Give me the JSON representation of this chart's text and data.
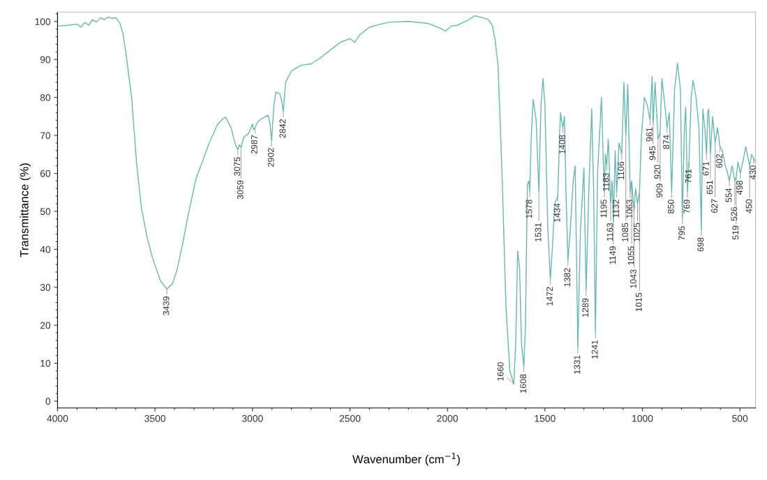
{
  "chart_data": {
    "type": "line",
    "xlabel": "Wavenumber (cm$^{−1}$)",
    "ylabel": "Transmittance (%)",
    "xlim": [
      4000,
      420
    ],
    "ylim": [
      -1.8,
      102.5
    ],
    "xticks": [
      4000,
      3500,
      3000,
      2500,
      2000,
      1500,
      1000,
      500
    ],
    "yticks": [
      0,
      10,
      20,
      30,
      40,
      50,
      60,
      70,
      80,
      90,
      100
    ],
    "grid": false,
    "marker": "none",
    "line_style": "solid",
    "series": [
      {
        "color": "#66b8b0",
        "x": [
          4000,
          3950,
          3900,
          3880,
          3860,
          3840,
          3820,
          3800,
          3780,
          3760,
          3740,
          3720,
          3700,
          3680,
          3665,
          3650,
          3640,
          3620,
          3595,
          3570,
          3540,
          3514,
          3472,
          3439,
          3410,
          3387,
          3360,
          3331,
          3290,
          3250,
          3222,
          3180,
          3150,
          3137,
          3110,
          3090,
          3075,
          3068,
          3059,
          3045,
          3020,
          3000,
          2995,
          2987,
          2975,
          2950,
          2920,
          2910,
          2902,
          2890,
          2880,
          2860,
          2850,
          2842,
          2830,
          2800,
          2750,
          2700,
          2650,
          2600,
          2550,
          2500,
          2475,
          2450,
          2400,
          2350,
          2300,
          2200,
          2100,
          2050,
          2010,
          1980,
          1950,
          1900,
          1860,
          1820,
          1790,
          1770,
          1755,
          1740,
          1720,
          1700,
          1680,
          1660,
          1650,
          1640,
          1630,
          1620,
          1608,
          1600,
          1590,
          1582,
          1578,
          1570,
          1560,
          1545,
          1531,
          1520,
          1510,
          1500,
          1485,
          1472,
          1460,
          1450,
          1434,
          1425,
          1420,
          1415,
          1408,
          1400,
          1392,
          1382,
          1370,
          1355,
          1345,
          1331,
          1318,
          1300,
          1289,
          1275,
          1260,
          1250,
          1241,
          1230,
          1210,
          1200,
          1195,
          1190,
          1183,
          1175,
          1163,
          1155,
          1149,
          1140,
          1132,
          1120,
          1106,
          1095,
          1085,
          1075,
          1063,
          1055,
          1043,
          1035,
          1025,
          1015,
          1005,
          990,
          975,
          961,
          950,
          945,
          935,
          920,
          909,
          900,
          885,
          874,
          862,
          850,
          835,
          820,
          805,
          795,
          785,
          778,
          769,
          761,
          750,
          740,
          725,
          710,
          698,
          690,
          680,
          671,
          665,
          660,
          651,
          640,
          627,
          615,
          602,
          590,
          575,
          565,
          554,
          540,
          526,
          519,
          510,
          498,
          485,
          470,
          450,
          440,
          430,
          420
        ],
        "values": [
          98.8,
          99,
          99.3,
          98.5,
          99.8,
          99,
          100.5,
          99.8,
          101,
          100.5,
          101.2,
          100.8,
          101,
          99.5,
          97,
          92,
          88,
          80,
          63,
          51,
          43,
          38,
          31.7,
          29.5,
          31,
          34.6,
          41,
          48.7,
          58.6,
          64,
          68,
          72.8,
          74.5,
          74.8,
          72,
          68,
          66.2,
          67.5,
          66.8,
          69.5,
          70.5,
          73,
          71.5,
          72,
          73.5,
          74.5,
          75.3,
          73,
          68.6,
          78,
          81.4,
          81,
          79,
          76.2,
          84,
          87,
          88.5,
          88.8,
          90.5,
          92.5,
          94.5,
          95.5,
          94.5,
          96.5,
          98.5,
          99.2,
          99.8,
          100,
          99.5,
          98.5,
          97.5,
          98.8,
          99,
          100.2,
          101.5,
          101,
          100.5,
          99,
          95,
          88,
          60,
          25,
          8,
          4.5,
          15,
          39.5,
          35,
          15,
          9,
          20,
          57,
          58,
          55,
          70,
          79.5,
          74,
          55,
          78,
          85,
          78,
          45,
          32,
          42,
          52,
          54,
          70,
          76,
          74,
          72,
          75,
          55,
          37,
          45,
          58,
          62,
          14,
          45,
          61.5,
          29,
          55,
          77,
          55,
          18,
          60,
          80,
          62,
          55,
          65,
          62,
          69,
          52,
          58,
          47,
          66,
          55,
          68,
          65,
          84,
          70,
          83.5,
          55,
          58,
          50,
          56,
          52,
          55,
          70,
          80,
          78,
          74,
          85.5,
          73,
          84,
          69,
          71,
          85,
          78,
          72,
          76,
          55,
          82,
          89,
          82,
          48,
          72,
          77.5,
          55,
          63,
          80,
          84.5,
          80,
          72,
          45,
          77,
          72,
          65,
          76,
          77,
          65,
          75,
          68,
          72,
          67,
          66,
          62,
          60.5,
          58,
          62,
          58,
          59,
          63,
          60,
          63,
          67,
          62,
          65,
          64,
          63
        ]
      }
    ],
    "annotations": [
      {
        "text": "3439",
        "x": 3439,
        "y": 29.5
      },
      {
        "text": "3075",
        "x": 3075,
        "y": 66.2
      },
      {
        "text": "3059",
        "x": 3059,
        "y": 66.8
      },
      {
        "text": "2987",
        "x": 2987,
        "y": 72
      },
      {
        "text": "2902",
        "x": 2902,
        "y": 68.6
      },
      {
        "text": "2842",
        "x": 2842,
        "y": 76.2
      },
      {
        "text": "1660",
        "x": 1660,
        "y": 4.5
      },
      {
        "text": "1608",
        "x": 1608,
        "y": 9
      },
      {
        "text": "1578",
        "x": 1578,
        "y": 55
      },
      {
        "text": "1531",
        "x": 1531,
        "y": 55
      },
      {
        "text": "1472",
        "x": 1472,
        "y": 32
      },
      {
        "text": "1434",
        "x": 1434,
        "y": 54
      },
      {
        "text": "1408",
        "x": 1408,
        "y": 72
      },
      {
        "text": "1382",
        "x": 1382,
        "y": 37
      },
      {
        "text": "1331",
        "x": 1331,
        "y": 14
      },
      {
        "text": "1289",
        "x": 1289,
        "y": 29
      },
      {
        "text": "1241",
        "x": 1241,
        "y": 18
      },
      {
        "text": "1195",
        "x": 1195,
        "y": 55
      },
      {
        "text": "1183",
        "x": 1183,
        "y": 62
      },
      {
        "text": "1163",
        "x": 1163,
        "y": 52
      },
      {
        "text": "1149",
        "x": 1149,
        "y": 47
      },
      {
        "text": "1132",
        "x": 1132,
        "y": 55
      },
      {
        "text": "1106",
        "x": 1106,
        "y": 65
      },
      {
        "text": "1085",
        "x": 1085,
        "y": 70
      },
      {
        "text": "1063",
        "x": 1063,
        "y": 55
      },
      {
        "text": "1055",
        "x": 1055,
        "y": 58
      },
      {
        "text": "1043",
        "x": 1043,
        "y": 50
      },
      {
        "text": "1025",
        "x": 1025,
        "y": 52
      },
      {
        "text": "1015",
        "x": 1015,
        "y": 55
      },
      {
        "text": "961",
        "x": 961,
        "y": 74
      },
      {
        "text": "945",
        "x": 945,
        "y": 73
      },
      {
        "text": "920",
        "x": 920,
        "y": 69
      },
      {
        "text": "909",
        "x": 909,
        "y": 71
      },
      {
        "text": "874",
        "x": 874,
        "y": 72
      },
      {
        "text": "850",
        "x": 850,
        "y": 55
      },
      {
        "text": "795",
        "x": 795,
        "y": 48
      },
      {
        "text": "769",
        "x": 769,
        "y": 55
      },
      {
        "text": "761",
        "x": 761,
        "y": 63
      },
      {
        "text": "698",
        "x": 698,
        "y": 45
      },
      {
        "text": "671",
        "x": 671,
        "y": 65
      },
      {
        "text": "651",
        "x": 651,
        "y": 65
      },
      {
        "text": "627",
        "x": 627,
        "y": 68
      },
      {
        "text": "602",
        "x": 602,
        "y": 67
      },
      {
        "text": "554",
        "x": 554,
        "y": 58
      },
      {
        "text": "526",
        "x": 526,
        "y": 58
      },
      {
        "text": "519",
        "x": 519,
        "y": 59
      },
      {
        "text": "498",
        "x": 498,
        "y": 60
      },
      {
        "text": "450",
        "x": 450,
        "y": 62
      },
      {
        "text": "430",
        "x": 430,
        "y": 64
      }
    ]
  }
}
